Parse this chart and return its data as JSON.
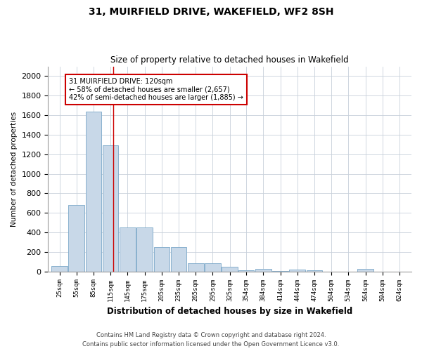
{
  "title1": "31, MUIRFIELD DRIVE, WAKEFIELD, WF2 8SH",
  "title2": "Size of property relative to detached houses in Wakefield",
  "xlabel": "Distribution of detached houses by size in Wakefield",
  "ylabel": "Number of detached properties",
  "footer1": "Contains HM Land Registry data © Crown copyright and database right 2024.",
  "footer2": "Contains public sector information licensed under the Open Government Licence v3.0.",
  "annotation_line1": "31 MUIRFIELD DRIVE: 120sqm",
  "annotation_line2": "← 58% of detached houses are smaller (2,657)",
  "annotation_line3": "42% of semi-detached houses are larger (1,885) →",
  "property_size": 120,
  "bar_color": "#c8d8e8",
  "bar_edge_color": "#7aa8c8",
  "grid_color": "#c8d0da",
  "marker_color": "#cc0000",
  "categories": [
    25,
    55,
    85,
    115,
    145,
    175,
    205,
    235,
    265,
    295,
    325,
    354,
    384,
    414,
    444,
    474,
    504,
    534,
    564,
    594,
    624
  ],
  "values": [
    55,
    680,
    1640,
    1290,
    450,
    450,
    250,
    250,
    85,
    85,
    45,
    15,
    25,
    5,
    20,
    10,
    0,
    0,
    30,
    0,
    0
  ],
  "ylim": [
    0,
    2100
  ],
  "yticks": [
    0,
    200,
    400,
    600,
    800,
    1000,
    1200,
    1400,
    1600,
    1800,
    2000
  ],
  "figwidth": 6.0,
  "figheight": 5.0,
  "dpi": 100
}
